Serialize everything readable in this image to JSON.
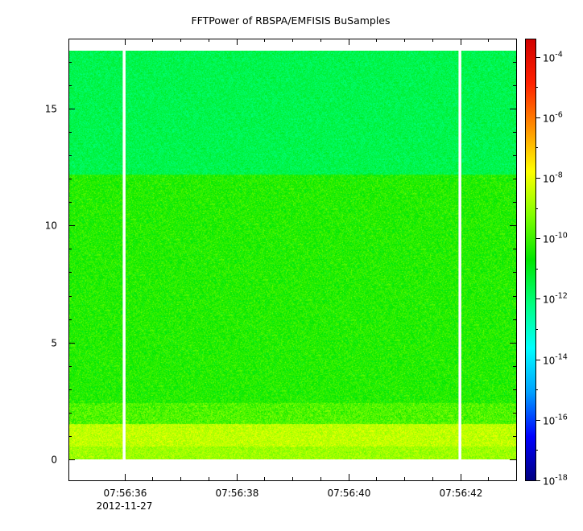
{
  "chart_data": {
    "type": "heatmap",
    "title": "FFTPower of RBSPA/EMFISIS  BuSamples",
    "xlabel": "",
    "ylabel": "",
    "x_ticks": [
      {
        "value": 36,
        "label": "07:56:36"
      },
      {
        "value": 38,
        "label": "07:56:38"
      },
      {
        "value": 40,
        "label": "07:56:40"
      },
      {
        "value": 42,
        "label": "07:56:42"
      }
    ],
    "x_minor_ticks": [
      36.5,
      37,
      37.5,
      38.5,
      39,
      39.5,
      40.5,
      41,
      41.5,
      42.5,
      43
    ],
    "x_sublabel": {
      "value": 36,
      "label": "2012-11-27"
    },
    "xlim": [
      35.0,
      43.0
    ],
    "x_unit": "seconds after 2012-11-27 07:56:00",
    "ylim": [
      -0.9,
      18.0
    ],
    "y_ticks": [
      {
        "value": 0,
        "label": "0"
      },
      {
        "value": 5,
        "label": "5"
      },
      {
        "value": 10,
        "label": "10"
      },
      {
        "value": 15,
        "label": "15"
      }
    ],
    "y_minor_ticks": [
      1,
      2,
      3,
      4,
      6,
      7,
      8,
      9,
      11,
      12,
      13,
      14,
      16,
      17
    ],
    "data_extent": {
      "x": [
        35.0,
        43.0
      ],
      "y": [
        0.0,
        17.5
      ]
    },
    "data_gaps": [
      {
        "x_start": 35.97,
        "x_end": 36.02
      },
      {
        "x_start": 41.97,
        "x_end": 42.02
      }
    ],
    "frequency_bands": [
      {
        "y_from": 0.0,
        "y_to": 0.55,
        "log10_power": -8.9,
        "noise": 0.7
      },
      {
        "y_from": 0.55,
        "y_to": 1.5,
        "log10_power": -8.5,
        "noise": 0.7
      },
      {
        "y_from": 1.5,
        "y_to": 2.4,
        "log10_power": -9.8,
        "noise": 0.9
      },
      {
        "y_from": 2.4,
        "y_to": 12.2,
        "log10_power": -10.3,
        "noise": 0.8
      },
      {
        "y_from": 12.2,
        "y_to": 17.5,
        "log10_power": -11.6,
        "noise": 0.6
      }
    ],
    "colorbar": {
      "scale": "log",
      "zlim": [
        -18,
        -3.4
      ],
      "ticks": [
        {
          "exp": -4,
          "base": "10",
          "sup": "-4"
        },
        {
          "exp": -6,
          "base": "10",
          "sup": "-6"
        },
        {
          "exp": -8,
          "base": "10",
          "sup": "-8"
        },
        {
          "exp": -10,
          "base": "10",
          "sup": "-10"
        },
        {
          "exp": -12,
          "base": "10",
          "sup": "-12"
        },
        {
          "exp": -14,
          "base": "10",
          "sup": "-14"
        },
        {
          "exp": -16,
          "base": "10",
          "sup": "-16"
        },
        {
          "exp": -18,
          "base": "10",
          "sup": "-18"
        }
      ],
      "minor_ticks": [
        -17,
        -15,
        -13,
        -11,
        -9,
        -7,
        -5
      ],
      "palette": [
        "#00007f",
        "#0000ff",
        "#00a0ff",
        "#00ffff",
        "#00ff7f",
        "#00e600",
        "#80ff00",
        "#ffff00",
        "#ff9000",
        "#ff2000",
        "#d00000"
      ]
    }
  }
}
